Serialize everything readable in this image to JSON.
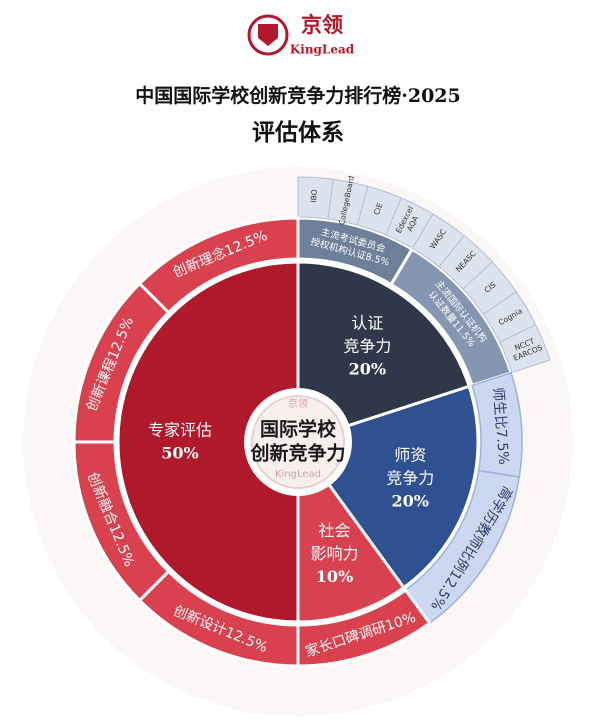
{
  "logo": {
    "name": "京领",
    "en": "KingLead"
  },
  "chart_data": {
    "type": "sunburst",
    "title": "中国国际学校创新竞争力排行榜·2025",
    "subtitle": "评估体系",
    "center_label": [
      "国际学校",
      "创新竞争力"
    ],
    "categories": [
      {
        "name_lines": [
          "认证",
          "竞争力"
        ],
        "value": 20,
        "value_label": "20%",
        "color": "#2f3748",
        "children": [
          {
            "name_lines": [
              "主流考试委员会",
              "授权机构认证"
            ],
            "value": 8.5,
            "value_label": "8.5%",
            "color": "#6d7f99",
            "items": [
              [
                "IBO"
              ],
              [
                "CollegeBoard"
              ],
              [
                "CIE"
              ],
              [
                "Edexcel",
                "AQA"
              ]
            ]
          },
          {
            "name_lines": [
              "主流国际认证机构",
              "认证数量"
            ],
            "value": 11.5,
            "value_label": "11.5%",
            "color": "#8596b0",
            "items": [
              [
                "WASC"
              ],
              [
                "NEASC"
              ],
              [
                "CIS"
              ],
              [
                "Cognia"
              ],
              [
                "NCCT",
                "EARCOS"
              ]
            ]
          }
        ]
      },
      {
        "name_lines": [
          "师资",
          "竞争力"
        ],
        "value": 20,
        "value_label": "20%",
        "color": "#2f5192",
        "children": [
          {
            "name_lines": [
              "师生比"
            ],
            "value": 7.5,
            "value_label": "7.5%",
            "color": "#ccd7f0"
          },
          {
            "name_lines": [
              "高学历教师比例"
            ],
            "value": 12.5,
            "value_label": "12.5%",
            "color": "#ccd7f0"
          }
        ]
      },
      {
        "name_lines": [
          "社会",
          "影响力"
        ],
        "value": 10,
        "value_label": "10%",
        "color": "#d8414f",
        "children": [
          {
            "name_lines": [
              "家长口碑调研"
            ],
            "value": 10,
            "value_label": "10%",
            "color": "#d9414f"
          }
        ]
      },
      {
        "name_lines": [
          "专家评估"
        ],
        "value": 50,
        "value_label": "50%",
        "color": "#b0182b",
        "children": [
          {
            "name_lines": [
              "创新设计"
            ],
            "value": 12.5,
            "value_label": "12.5%",
            "color": "#d9414f"
          },
          {
            "name_lines": [
              "创新融合"
            ],
            "value": 12.5,
            "value_label": "12.5%",
            "color": "#d9414f"
          },
          {
            "name_lines": [
              "创新课程"
            ],
            "value": 12.5,
            "value_label": "12.5%",
            "color": "#d9414f"
          },
          {
            "name_lines": [
              "创新理念"
            ],
            "value": 12.5,
            "value_label": "12.5%",
            "color": "#d9414f"
          }
        ]
      }
    ]
  }
}
